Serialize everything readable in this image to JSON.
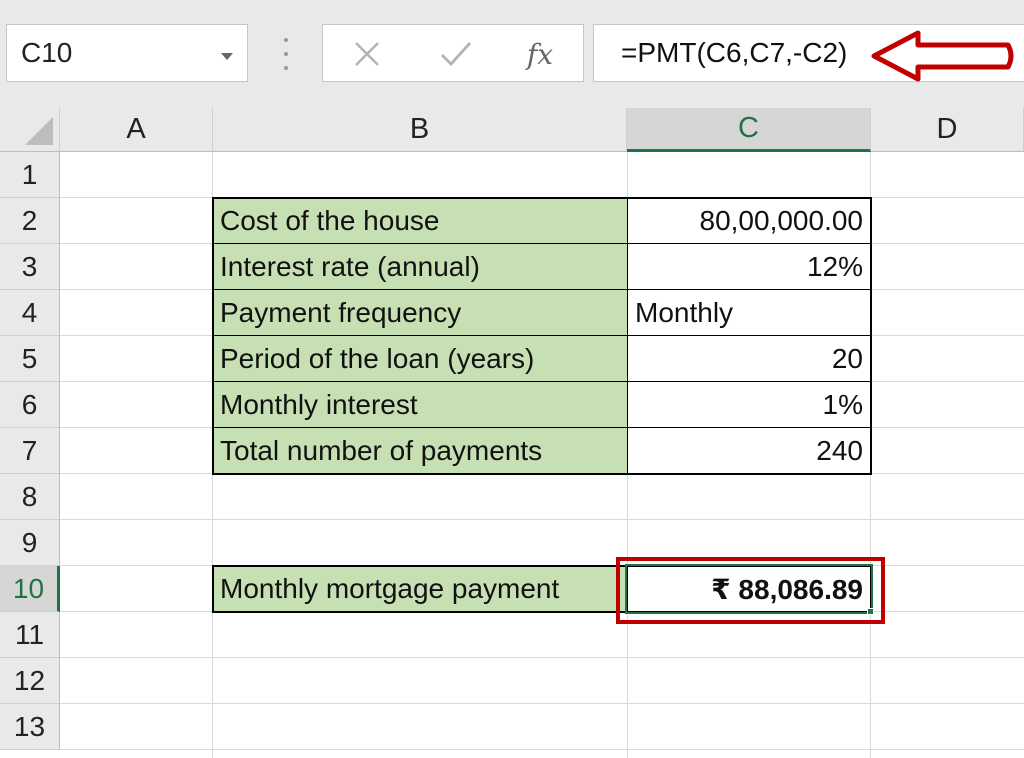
{
  "formula_bar": {
    "name_box": "C10",
    "cancel_icon": "close-icon",
    "enter_icon": "checkmark-icon",
    "fx_label": "fx",
    "formula": "=PMT(C6,C7,-C2)"
  },
  "columns": [
    "A",
    "B",
    "C",
    "D"
  ],
  "rows": [
    "1",
    "2",
    "3",
    "4",
    "5",
    "6",
    "7",
    "8",
    "9",
    "10",
    "11",
    "12",
    "13"
  ],
  "active_cell": {
    "column": "C",
    "row": "10"
  },
  "table": [
    {
      "row": "2",
      "label": "Cost of the house",
      "value": "80,00,000.00"
    },
    {
      "row": "3",
      "label": "Interest rate (annual)",
      "value": "12%"
    },
    {
      "row": "4",
      "label": "Payment frequency",
      "value": "Monthly"
    },
    {
      "row": "5",
      "label": "Period of the loan (years)",
      "value": "20"
    },
    {
      "row": "6",
      "label": "Monthly interest",
      "value": "1%"
    },
    {
      "row": "7",
      "label": "Total number of payments",
      "value": "240"
    }
  ],
  "result": {
    "row": "10",
    "label": "Monthly mortgage payment",
    "value": "₹ 88,086.89"
  },
  "colors": {
    "label_fill": "#c6e0b4",
    "selection": "#217346",
    "annotation": "#c00000"
  }
}
